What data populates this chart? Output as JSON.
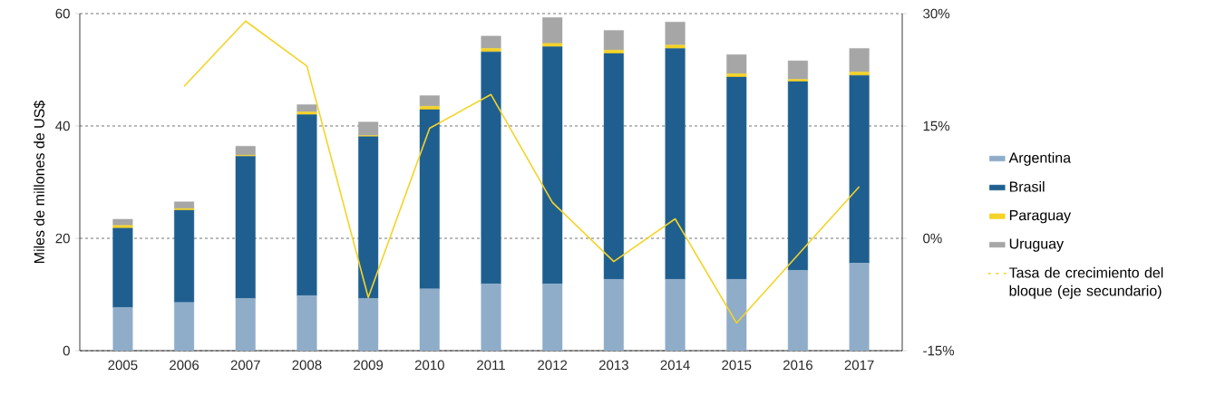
{
  "chart_data": {
    "type": "bar",
    "stacked": true,
    "ylabel": "Miles de millones de US$",
    "categories": [
      "2005",
      "2006",
      "2007",
      "2008",
      "2009",
      "2010",
      "2011",
      "2012",
      "2013",
      "2014",
      "2015",
      "2016",
      "2017"
    ],
    "series": [
      {
        "name": "Argentina",
        "color": "#8fadc9",
        "values": [
          7.7,
          8.6,
          9.3,
          9.8,
          9.3,
          11.0,
          11.9,
          11.9,
          12.7,
          12.7,
          12.7,
          14.3,
          15.6
        ]
      },
      {
        "name": "Brasil",
        "color": "#1f5f8f",
        "values": [
          14.1,
          16.4,
          25.3,
          32.2,
          28.8,
          31.9,
          41.3,
          42.2,
          40.2,
          41.1,
          36.0,
          33.6,
          33.4
        ]
      },
      {
        "name": "Paraguay",
        "color": "#f5d327",
        "values": [
          0.5,
          0.3,
          0.2,
          0.5,
          0.2,
          0.6,
          0.6,
          0.6,
          0.6,
          0.6,
          0.6,
          0.4,
          0.6
        ]
      },
      {
        "name": "Uruguay",
        "color": "#a6a6a6",
        "values": [
          1.1,
          1.2,
          1.6,
          1.3,
          2.4,
          1.9,
          2.2,
          4.6,
          3.5,
          4.1,
          3.4,
          3.3,
          4.2
        ]
      },
      {
        "name": "Tasa de crecimiento del bloque (eje secundario)",
        "type": "line",
        "axis": "y2",
        "color": "#f5d327",
        "values": [
          null,
          20.3,
          29.0,
          23.0,
          -7.9,
          14.7,
          19.2,
          4.8,
          -3.1,
          2.6,
          -11.3,
          -2.2,
          6.9
        ]
      }
    ],
    "ylim": [
      0,
      60
    ],
    "yticks": [
      0,
      20,
      40,
      60
    ],
    "y2lim": [
      -15,
      30
    ],
    "y2ticks": [
      {
        "value": -15,
        "label": "-15%"
      },
      {
        "value": 0,
        "label": "0%"
      },
      {
        "value": 15,
        "label": "15%"
      },
      {
        "value": 30,
        "label": "30%"
      }
    ],
    "grid": "y",
    "legend": "right",
    "marker": "none",
    "line_style": "solid"
  }
}
